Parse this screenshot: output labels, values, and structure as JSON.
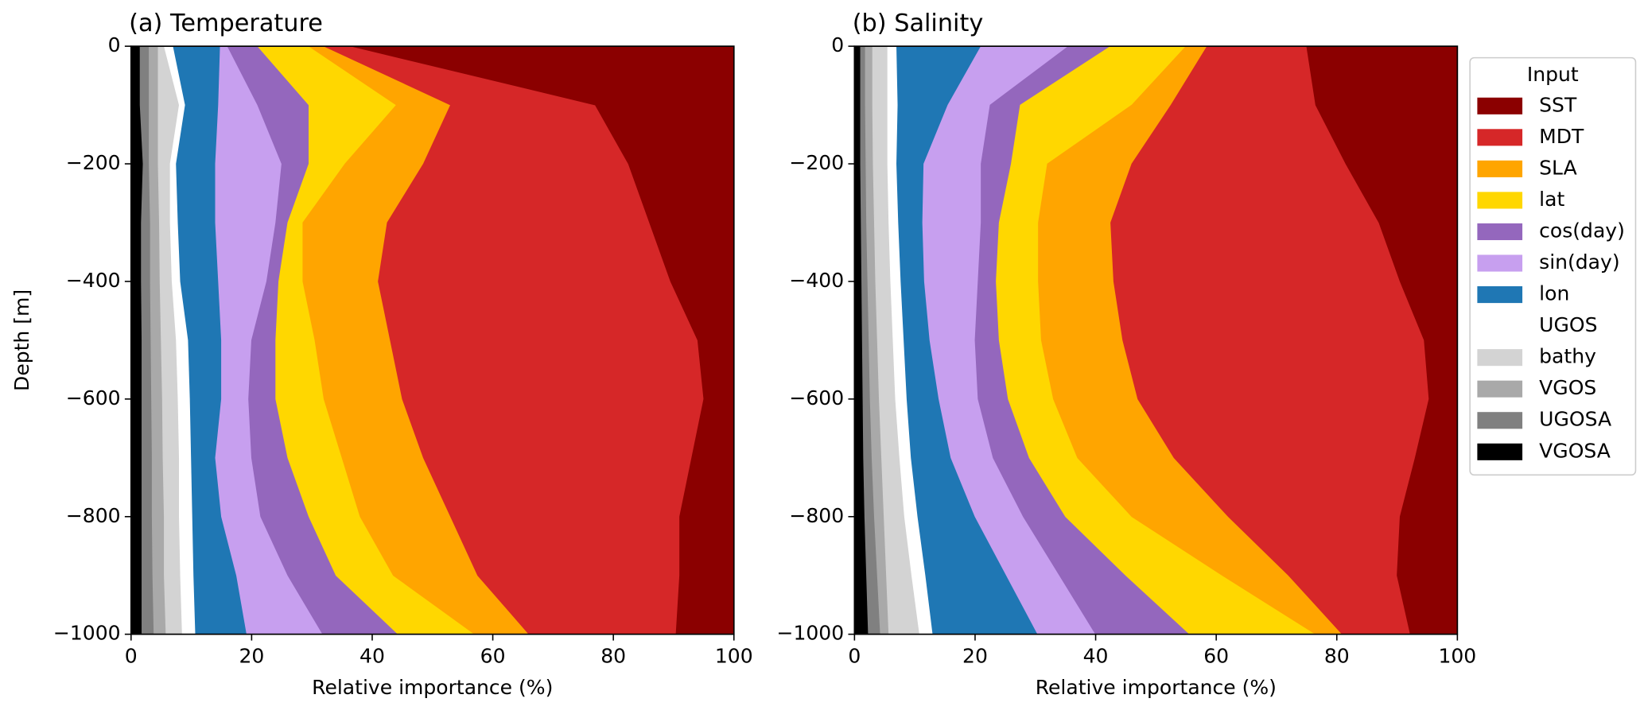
{
  "legend": {
    "title": "Input",
    "corner": "outside right"
  },
  "chart_data": [
    {
      "type": "stacked_area_horizontal",
      "title": "(a) Temperature",
      "xlabel": "Relative importance (%)",
      "ylabel": "Depth [m]",
      "xlim": [
        0,
        100
      ],
      "xticks": [
        0,
        20,
        40,
        60,
        80,
        100
      ],
      "ylim": [
        -1000,
        0
      ],
      "yticks": [
        0,
        {
          "value": -200,
          "label": "−200"
        },
        {
          "value": -400,
          "label": "−400"
        },
        {
          "value": -600,
          "label": "−600"
        },
        {
          "value": -800,
          "label": "−800"
        },
        {
          "value": -1000,
          "label": "−1000"
        }
      ],
      "y": [
        0,
        -100,
        -200,
        -300,
        -400,
        -500,
        -600,
        -700,
        -800,
        -900,
        -1000
      ],
      "series": [
        {
          "name": "SST",
          "color": "#8b0000",
          "values": [
            63.5,
            23,
            17.5,
            14,
            10.5,
            6,
            5,
            7,
            9,
            9,
            9.6
          ]
        },
        {
          "name": "MDT",
          "color": "#d62728",
          "values": [
            4.5,
            24,
            34,
            43.5,
            48.5,
            51,
            50,
            44.5,
            38,
            33.5,
            24.4
          ]
        },
        {
          "name": "SLA",
          "color": "#ffa500",
          "values": [
            2.5,
            9,
            13,
            14,
            12.5,
            12.5,
            13,
            13.5,
            15,
            14,
            9
          ]
        },
        {
          "name": "lat",
          "color": "#ffd700",
          "values": [
            8.5,
            14.5,
            6,
            2.5,
            4,
            6.5,
            8,
            9,
            8.5,
            9.5,
            12.7
          ]
        },
        {
          "name": "cos(day)",
          "color": "#9467bd",
          "values": [
            5,
            8.5,
            4.5,
            2,
            2,
            4,
            4.5,
            6,
            8,
            8,
            12.5
          ]
        },
        {
          "name": "sin(day)",
          "color": "#c79fef",
          "values": [
            1.2,
            6.5,
            11,
            10,
            8,
            5,
            4.5,
            6,
            6.5,
            8.5,
            12.6
          ]
        },
        {
          "name": "lon",
          "color": "#1f77b4",
          "values": [
            7.8,
            5.5,
            6.5,
            6.2,
            6.3,
            5.5,
            5.2,
            4,
            4.8,
            7.1,
            8.5
          ]
        },
        {
          "name": "UGOS",
          "color": "#ffffff",
          "values": [
            1.5,
            1,
            1,
            1.3,
            1.4,
            2,
            2,
            2,
            2.2,
            2.2,
            2.2
          ]
        },
        {
          "name": "bathy",
          "color": "#d3d3d3",
          "values": [
            1,
            3.5,
            2,
            1.8,
            2,
            2.5,
            2.6,
            2.7,
            2.5,
            2.7,
            2.7
          ]
        },
        {
          "name": "VGOS",
          "color": "#a9a9a9",
          "values": [
            1.5,
            1.5,
            1.5,
            1.5,
            1.6,
            1.7,
            1.8,
            1.8,
            2,
            1.9,
            2
          ]
        },
        {
          "name": "UGOSA",
          "color": "#808080",
          "values": [
            1.5,
            1.5,
            1,
            1.5,
            1.5,
            1.5,
            1.6,
            1.7,
            1.7,
            1.8,
            2
          ]
        },
        {
          "name": "VGOSA",
          "color": "#000000",
          "values": [
            1.5,
            1.5,
            2,
            1.7,
            1.7,
            1.8,
            1.8,
            1.8,
            1.8,
            1.8,
            1.8
          ]
        }
      ]
    },
    {
      "type": "stacked_area_horizontal",
      "title": "(b) Salinity",
      "xlabel": "Relative importance (%)",
      "xlim": [
        0,
        100
      ],
      "xticks": [
        0,
        20,
        40,
        60,
        80,
        100
      ],
      "ylim": [
        -1000,
        0
      ],
      "yticks": [
        0,
        {
          "value": -200,
          "label": "−200"
        },
        {
          "value": -400,
          "label": "−400"
        },
        {
          "value": -600,
          "label": "−600"
        },
        {
          "value": -800,
          "label": "−800"
        },
        {
          "value": -1000,
          "label": "−1000"
        }
      ],
      "y": [
        0,
        -100,
        -200,
        -300,
        -400,
        -500,
        -600,
        -700,
        -800,
        -900,
        -1000
      ],
      "series": [
        {
          "name": "SST",
          "color": "#8b0000",
          "values": [
            25,
            23.5,
            18.5,
            13,
            9.5,
            5.5,
            4.7,
            7,
            9.5,
            10,
            7.8
          ]
        },
        {
          "name": "MDT",
          "color": "#d62728",
          "values": [
            16.5,
            24,
            35.5,
            44.5,
            47.5,
            50,
            48.3,
            40,
            28.5,
            18,
            11.3
          ]
        },
        {
          "name": "SLA",
          "color": "#ffa500",
          "values": [
            3.5,
            6.5,
            14,
            12,
            12.5,
            13.5,
            14,
            16,
            16,
            11,
            4.4
          ]
        },
        {
          "name": "lat",
          "color": "#ffd700",
          "values": [
            12.5,
            18.5,
            6,
            6.5,
            7,
            7,
            7.5,
            8,
            11,
            16,
            20.9
          ]
        },
        {
          "name": "cos(day)",
          "color": "#9467bd",
          "values": [
            7,
            5,
            5,
            3,
            3,
            4,
            5,
            6,
            7,
            11,
            15.6
          ]
        },
        {
          "name": "sin(day)",
          "color": "#c79fef",
          "values": [
            14.5,
            7,
            9.5,
            9.7,
            8.9,
            7.5,
            6.5,
            7,
            8,
            8.8,
            9.6
          ]
        },
        {
          "name": "lon",
          "color": "#1f77b4",
          "values": [
            14,
            8.3,
            4.5,
            4,
            3.9,
            4.3,
            5.3,
            6.6,
            9.5,
            13.4,
            17.4
          ]
        },
        {
          "name": "UGOS",
          "color": "#ffffff",
          "values": [
            1.5,
            1.7,
            1.5,
            1.6,
            1.7,
            1.8,
            1.9,
            1.9,
            2.2,
            2.3,
            2.2
          ]
        },
        {
          "name": "bathy",
          "color": "#d3d3d3",
          "values": [
            2.5,
            2.5,
            2.4,
            2.4,
            2.5,
            2.6,
            2.7,
            3,
            3.4,
            4.2,
            5.1
          ]
        },
        {
          "name": "VGOS",
          "color": "#a9a9a9",
          "values": [
            1.2,
            1.2,
            1.2,
            1.3,
            1.3,
            1.4,
            1.5,
            1.6,
            1.6,
            1.5,
            1.4
          ]
        },
        {
          "name": "UGOSA",
          "color": "#808080",
          "values": [
            0.8,
            0.8,
            0.9,
            0.9,
            1,
            1.1,
            1.2,
            1.4,
            1.6,
            1.8,
            2
          ]
        },
        {
          "name": "VGOSA",
          "color": "#000000",
          "values": [
            1,
            1,
            1,
            1.1,
            1.2,
            1.3,
            1.4,
            1.5,
            1.7,
            2,
            2.3
          ]
        }
      ]
    }
  ]
}
